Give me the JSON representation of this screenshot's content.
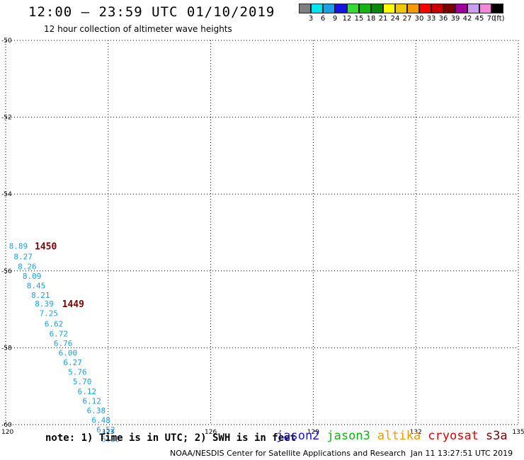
{
  "header": {
    "title": "12:00 – 23:59 UTC 01/10/2019",
    "subtitle": "12 hour collection of altimeter wave heights"
  },
  "color_legend": {
    "unit": "(ft)",
    "bins": [
      {
        "label": "3",
        "color": "#808080"
      },
      {
        "label": "6",
        "color": "#00e5ee"
      },
      {
        "label": "9",
        "color": "#1c9fea"
      },
      {
        "label": "12",
        "color": "#1515e0"
      },
      {
        "label": "15",
        "color": "#33dd33"
      },
      {
        "label": "18",
        "color": "#13b413"
      },
      {
        "label": "21",
        "color": "#078a07"
      },
      {
        "label": "24",
        "color": "#ffff00"
      },
      {
        "label": "27",
        "color": "#f0c800"
      },
      {
        "label": "30",
        "color": "#f59a00"
      },
      {
        "label": "33",
        "color": "#ff0000"
      },
      {
        "label": "36",
        "color": "#c80000"
      },
      {
        "label": "39",
        "color": "#7a0000"
      },
      {
        "label": "42",
        "color": "#a0009a"
      },
      {
        "label": "45",
        "color": "#c8a0f0"
      },
      {
        "label": "70",
        "color": "#f08ad8"
      },
      {
        "label": "",
        "color": "#000000"
      }
    ]
  },
  "chart_data": {
    "type": "scatter",
    "xlim": [
      120,
      135
    ],
    "ylim": [
      -60,
      -50
    ],
    "x_ticks": [
      "120",
      "123",
      "126",
      "129",
      "132",
      "135"
    ],
    "y_ticks": [
      "-50",
      "-52",
      "-54",
      "-56",
      "-58",
      "-60"
    ],
    "grid": true,
    "points": [
      {
        "x": 120.37,
        "y": -55.35,
        "label": "8.89"
      },
      {
        "x": 120.51,
        "y": -55.63,
        "label": "8.27"
      },
      {
        "x": 120.63,
        "y": -55.88,
        "label": "8.26"
      },
      {
        "x": 120.77,
        "y": -56.13,
        "label": "8.09"
      },
      {
        "x": 120.89,
        "y": -56.38,
        "label": "8.45"
      },
      {
        "x": 121.02,
        "y": -56.63,
        "label": "8.21"
      },
      {
        "x": 121.13,
        "y": -56.85,
        "label": "8.39"
      },
      {
        "x": 121.26,
        "y": -57.1,
        "label": "7.25"
      },
      {
        "x": 121.41,
        "y": -57.38,
        "label": "6.62"
      },
      {
        "x": 121.55,
        "y": -57.63,
        "label": "6.72"
      },
      {
        "x": 121.68,
        "y": -57.88,
        "label": "6.76"
      },
      {
        "x": 121.82,
        "y": -58.13,
        "label": "6.00"
      },
      {
        "x": 121.96,
        "y": -58.38,
        "label": "6.27"
      },
      {
        "x": 122.1,
        "y": -58.63,
        "label": "5.76"
      },
      {
        "x": 122.24,
        "y": -58.88,
        "label": "5.70"
      },
      {
        "x": 122.38,
        "y": -59.13,
        "label": "6.12"
      },
      {
        "x": 122.52,
        "y": -59.38,
        "label": "6.12"
      },
      {
        "x": 122.65,
        "y": -59.63,
        "label": "6.38"
      },
      {
        "x": 122.79,
        "y": -59.88,
        "label": "6.48"
      },
      {
        "x": 122.93,
        "y": -60.13,
        "label": "6.52"
      },
      {
        "x": 123.07,
        "y": -60.38,
        "label": "6.33"
      }
    ],
    "point_color": "#1c9fea",
    "annotations": [
      {
        "x": 120.85,
        "y": -55.35,
        "label": "1450",
        "color": "#7a0000"
      },
      {
        "x": 121.65,
        "y": -56.85,
        "label": "1449",
        "color": "#7a0000"
      }
    ]
  },
  "footer": {
    "note": "note: 1) Time is in UTC; 2) SWH is in feet",
    "satellites": [
      {
        "label": "jason2",
        "color": "#1515e0"
      },
      {
        "label": "jason3",
        "color": "#13b413"
      },
      {
        "label": "altika",
        "color": "#f59a00"
      },
      {
        "label": "cryosat",
        "color": "#e00000"
      },
      {
        "label": "s3a",
        "color": "#7a0000"
      }
    ],
    "credit": "NOAA/NESDIS Center for Satellite Applications and Research",
    "timestamp": "Jan 11 13:27:51 UTC 2019"
  }
}
